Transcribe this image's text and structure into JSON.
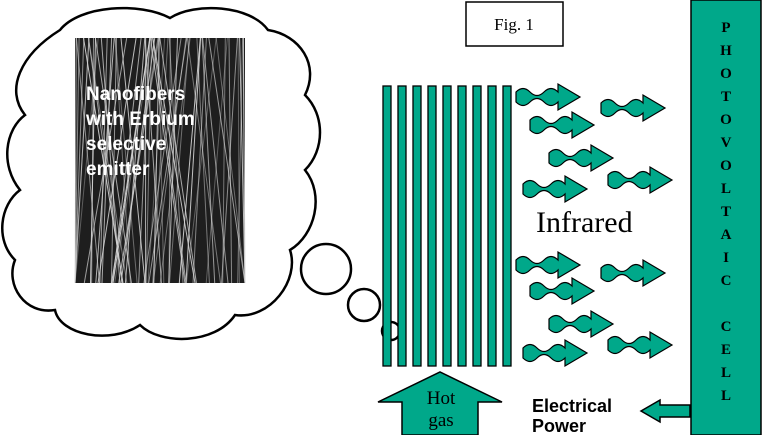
{
  "figure_label": "Fig. 1",
  "inset": {
    "caption_lines": [
      "Nanofibers",
      "with Erbium",
      "selective",
      "emitter"
    ]
  },
  "infrared_label": "Infrared",
  "pv_cell": {
    "letters": [
      "P",
      "H",
      "O",
      "T",
      "O",
      "V",
      "O",
      "L",
      "T",
      "A",
      "I",
      "C",
      "",
      "C",
      "E",
      "L",
      "L"
    ]
  },
  "hot_gas": {
    "lines": [
      "Hot",
      "gas"
    ]
  },
  "power": {
    "lines": [
      "Electrical",
      "Power"
    ]
  },
  "colors": {
    "accent": "#00a88a",
    "accent_dark": "#00614f",
    "cloud": "#ffffff",
    "photo_bg": "#222222",
    "photo_fiber": "#d8d8d8"
  }
}
